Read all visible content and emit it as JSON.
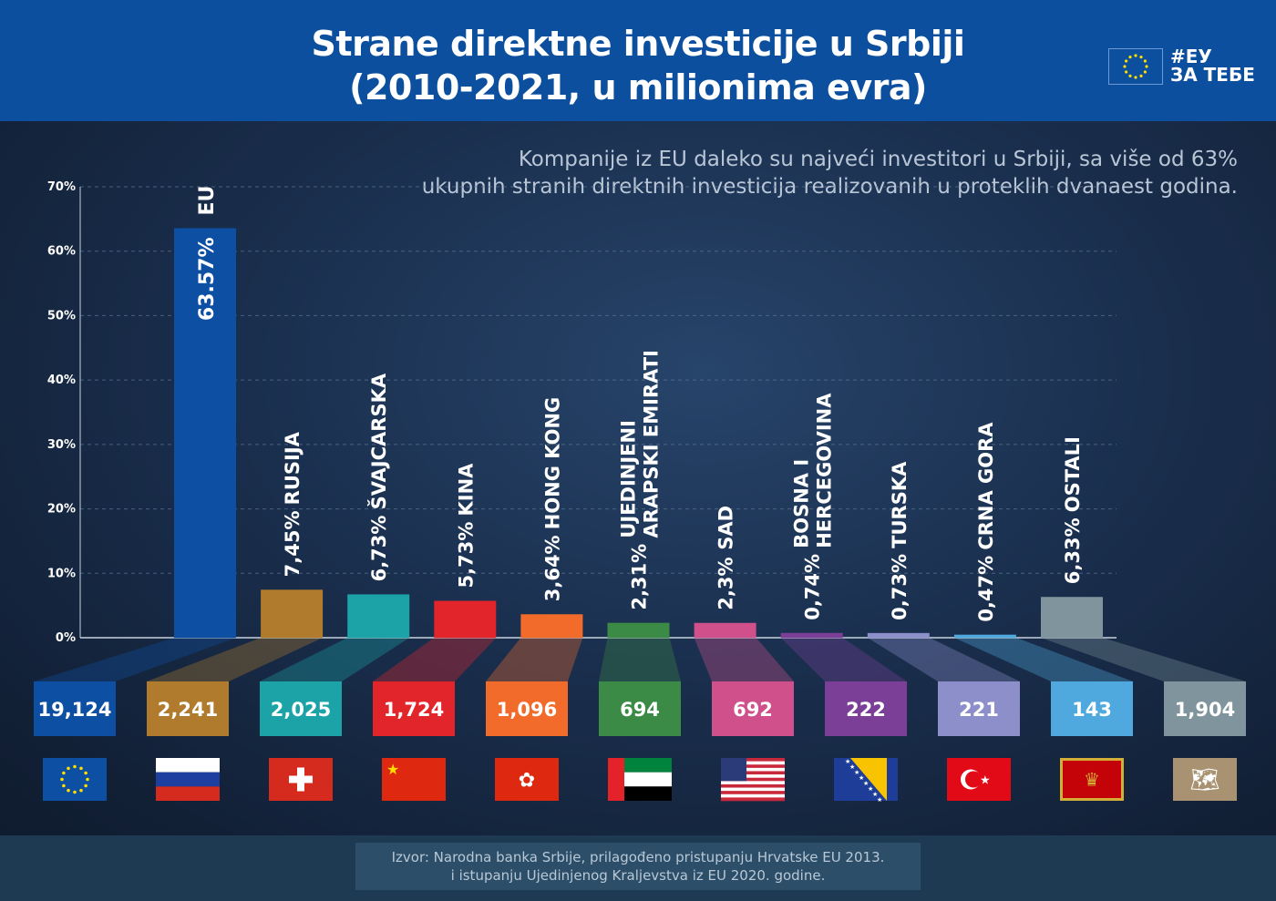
{
  "header": {
    "title_line1": "Strane direktne investicije u Srbiji",
    "title_line2": "(2010-2021, u milionima evra)",
    "tag_line1": "#ЕУ",
    "tag_line2": "ЗА ТЕБЕ",
    "brand_color": "#0b4f9e"
  },
  "subtitle": {
    "line1": "Kompanije iz EU daleko su najveći investitori u Srbiji, sa više od 63%",
    "line2": "ukupnih stranih direktnih investicija realizovanih u proteklih dvanaest godina."
  },
  "footer": {
    "line1": "Izvor: Narodna banka Srbije, prilagođeno pristupanju Hrvatske EU 2013.",
    "line2": "i istupanju Ujedinjenog Kraljevstva iz EU 2020. godine."
  },
  "chart_data": {
    "type": "bar",
    "ylim": [
      0,
      70
    ],
    "yticks": [
      "0%",
      "10%",
      "20%",
      "30%",
      "40%",
      "50%",
      "60%",
      "70%"
    ],
    "grid": true,
    "categories": [
      {
        "name_lines": [
          "EU"
        ],
        "percent": 63.57,
        "percent_label": "63.57%",
        "value_label": "19,124",
        "color": "#0d4fa3",
        "flag": "eu-flag"
      },
      {
        "name_lines": [
          "RUSIJA"
        ],
        "percent": 7.45,
        "percent_label": "7,45%",
        "value_label": "2,241",
        "color": "#b07b2c",
        "flag": "russia-flag"
      },
      {
        "name_lines": [
          "ŠVAJCARSKA"
        ],
        "percent": 6.73,
        "percent_label": "6,73%",
        "value_label": "2,025",
        "color": "#1ba3a7",
        "flag": "switzerland-flag"
      },
      {
        "name_lines": [
          "KINA"
        ],
        "percent": 5.73,
        "percent_label": "5,73%",
        "value_label": "1,724",
        "color": "#e2242b",
        "flag": "china-flag"
      },
      {
        "name_lines": [
          "HONG KONG"
        ],
        "percent": 3.64,
        "percent_label": "3,64%",
        "value_label": "1,096",
        "color": "#f26b2a",
        "flag": "hong-kong-flag"
      },
      {
        "name_lines": [
          "UJEDINJENI",
          "ARAPSKI EMIRATI"
        ],
        "percent": 2.31,
        "percent_label": "2,31%",
        "value_label": "694",
        "color": "#3b8a45",
        "flag": "uae-flag"
      },
      {
        "name_lines": [
          "SAD"
        ],
        "percent": 2.3,
        "percent_label": "2,3%",
        "value_label": "692",
        "color": "#cf508b",
        "flag": "usa-flag"
      },
      {
        "name_lines": [
          "BOSNA I",
          "HERCEGOVINA"
        ],
        "percent": 0.74,
        "percent_label": "0,74%",
        "value_label": "222",
        "color": "#7c3f98",
        "flag": "bosnia-flag"
      },
      {
        "name_lines": [
          "TURSKA"
        ],
        "percent": 0.73,
        "percent_label": "0,73%",
        "value_label": "221",
        "color": "#8c8fca",
        "flag": "turkey-flag"
      },
      {
        "name_lines": [
          "CRNA GORA"
        ],
        "percent": 0.47,
        "percent_label": "0,47%",
        "value_label": "143",
        "color": "#4fa8de",
        "flag": "montenegro-flag"
      },
      {
        "name_lines": [
          "OSTALI"
        ],
        "percent": 6.33,
        "percent_label": "6,33%",
        "value_label": "1,904",
        "color": "#7f949c",
        "flag": "world-map-flag"
      }
    ]
  }
}
